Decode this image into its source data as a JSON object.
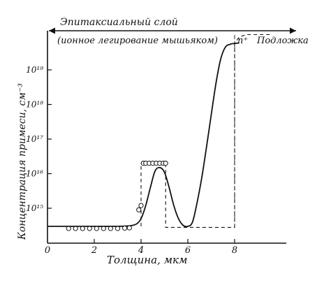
{
  "colors": {
    "ink": "#111111",
    "paper": "#ffffff"
  },
  "chart_data": {
    "type": "line",
    "xlabel": "Толщина, мкм",
    "ylabel": "Концентрация примеси, см⁻³",
    "x_ticks": [
      "0",
      "2",
      "4",
      "6",
      "8"
    ],
    "y_ticks": [
      "10¹⁵",
      "10¹⁶",
      "10¹⁷",
      "10¹⁸",
      "10¹⁹"
    ],
    "xlim": [
      0,
      10.2
    ],
    "scale_y": "log",
    "grid": false,
    "annotations": {
      "epitaxial": "Эпитаксиальный слой",
      "implant": "(ионное легирование мышьяком)",
      "nplus": "n⁺",
      "substrate": "Подложка"
    },
    "series": [
      {
        "role": "measured-curve",
        "x": [
          0,
          1,
          2,
          3,
          3.5,
          3.8,
          4.0,
          4.2,
          4.4,
          4.6,
          4.8,
          5.0,
          5.2,
          5.4,
          5.6,
          5.8,
          6.0,
          6.2,
          6.4,
          6.6,
          6.8,
          7.0,
          7.2,
          7.4,
          7.6,
          7.8,
          8.0,
          8.2
        ],
        "y": [
          300000000000000.0,
          300000000000000.0,
          300000000000000.0,
          300000000000000.0,
          310000000000000.0,
          350000000000000.0,
          500000000000000.0,
          1200000000000000.0,
          4000000000000000.0,
          1.2e+16,
          1.5e+16,
          1.1e+16,
          4000000000000000.0,
          1200000000000000.0,
          500000000000000.0,
          320000000000000.0,
          300000000000000.0,
          400000000000000.0,
          1500000000000000.0,
          8000000000000000.0,
          6e+16,
          5e+17,
          4e+18,
          2e+19,
          4.5e+19,
          5.5e+19,
          5.8e+19,
          6e+19
        ]
      },
      {
        "role": "implant-data-circles",
        "x": [
          0.9,
          1.2,
          1.5,
          1.8,
          2.1,
          2.4,
          2.7,
          3.0,
          3.3,
          3.5,
          3.9,
          4.0,
          4.1,
          4.2,
          4.35,
          4.5,
          4.65,
          4.8,
          4.95,
          5.05
        ],
        "y": [
          260000000000000.0,
          260000000000000.0,
          260000000000000.0,
          260000000000000.0,
          260000000000000.0,
          260000000000000.0,
          260000000000000.0,
          260000000000000.0,
          265000000000000.0,
          270000000000000.0,
          900000000000000.0,
          1200000000000000.0,
          2e+16,
          2e+16,
          2e+16,
          2e+16,
          2e+16,
          2e+16,
          2e+16,
          2e+16
        ]
      },
      {
        "role": "design-profile-dashed",
        "x": [
          4.0,
          4.0,
          5.05,
          5.05,
          8.0,
          8.0,
          8.2,
          8.5,
          9.5
        ],
        "y": [
          300000000000000.0,
          2e+16,
          2e+16,
          280000000000000.0,
          280000000000000.0,
          6e+19,
          9e+19,
          1.05e+20,
          1.05e+20
        ]
      }
    ]
  }
}
